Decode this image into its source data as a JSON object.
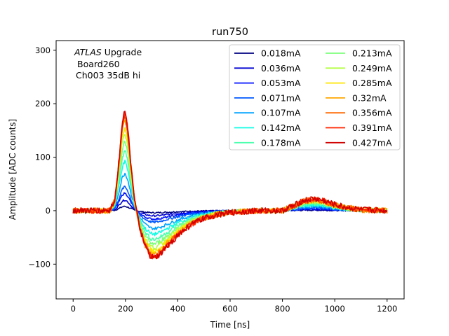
{
  "chart_data": {
    "type": "line",
    "title": "run750",
    "xlabel": "Time [ns]",
    "ylabel": "Amplitude [ADC counts]",
    "xlim": [
      -65,
      1265
    ],
    "ylim": [
      -165,
      318
    ],
    "xticks": [
      0,
      200,
      400,
      600,
      800,
      1000,
      1200
    ],
    "xtick_labels": [
      "0",
      "200",
      "400",
      "600",
      "800",
      "1000",
      "1200"
    ],
    "yticks": [
      -100,
      0,
      100,
      200,
      300
    ],
    "ytick_labels": [
      "−100",
      "0",
      "100",
      "200",
      "300"
    ],
    "grid": false,
    "legend_position": "top-right",
    "legend_columns": 2,
    "annotation": {
      "line1_italic": "ATLAS",
      "line1_rest": " Upgrade",
      "line2": "Board260",
      "line3": "Ch003 35dB hi"
    },
    "pulse_shape": {
      "time_ns": [
        0,
        140,
        160,
        175,
        188,
        198,
        208,
        220,
        235,
        255,
        275,
        295,
        310,
        330,
        360,
        400,
        450,
        500,
        550,
        600,
        700,
        800,
        850,
        880,
        920,
        960,
        1000,
        1050,
        1100,
        1150,
        1200
      ],
      "normalized_amplitude": [
        0,
        0,
        0.12,
        0.5,
        0.9,
        1.0,
        0.85,
        0.5,
        0.1,
        -0.18,
        -0.36,
        -0.46,
        -0.48,
        -0.45,
        -0.36,
        -0.25,
        -0.14,
        -0.08,
        -0.04,
        -0.02,
        0,
        0,
        0.06,
        0.1,
        0.12,
        0.1,
        0.06,
        0.03,
        0.01,
        0.005,
        0
      ]
    },
    "series": [
      {
        "name": "0.018mA",
        "color": "#000080",
        "peak": 8
      },
      {
        "name": "0.036mA",
        "color": "#0000d1",
        "peak": 20
      },
      {
        "name": "0.053mA",
        "color": "#0010ff",
        "peak": 33
      },
      {
        "name": "0.071mA",
        "color": "#0058ff",
        "peak": 45
      },
      {
        "name": "0.107mA",
        "color": "#00a4ff",
        "peak": 70
      },
      {
        "name": "0.142mA",
        "color": "#13fce4",
        "peak": 92
      },
      {
        "name": "0.178mA",
        "color": "#4affad",
        "peak": 112
      },
      {
        "name": "0.213mA",
        "color": "#7dff7a",
        "peak": 130
      },
      {
        "name": "0.249mA",
        "color": "#b4ff43",
        "peak": 145
      },
      {
        "name": "0.285mA",
        "color": "#ffe600",
        "peak": 158
      },
      {
        "name": "0.32mA",
        "color": "#ffa700",
        "peak": 168
      },
      {
        "name": "0.356mA",
        "color": "#ff6800",
        "peak": 176
      },
      {
        "name": "0.391mA",
        "color": "#ff2500",
        "peak": 182
      },
      {
        "name": "0.427mA",
        "color": "#d10000",
        "peak": 186
      }
    ]
  }
}
